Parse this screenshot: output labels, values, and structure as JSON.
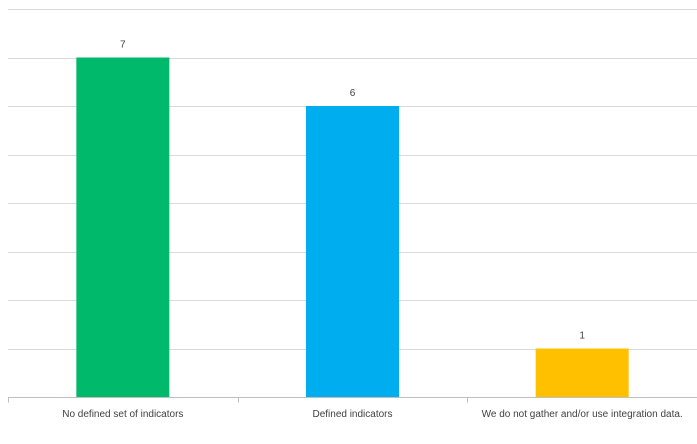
{
  "chart_data": {
    "type": "bar",
    "title": "",
    "xlabel": "",
    "ylabel": "",
    "categories": [
      "No defined set of indicators",
      "Defined indicators",
      "We do not gather and/or use integration data."
    ],
    "values": [
      7,
      6,
      1
    ],
    "data_labels": [
      "7",
      "6",
      "1"
    ],
    "bar_colors": [
      "#00B96B",
      "#00AEEF",
      "#FFC000"
    ],
    "ylim": [
      0,
      8
    ],
    "y_tick_step": 1,
    "show_y_tick_labels": false,
    "grid": true,
    "legend": "none"
  }
}
